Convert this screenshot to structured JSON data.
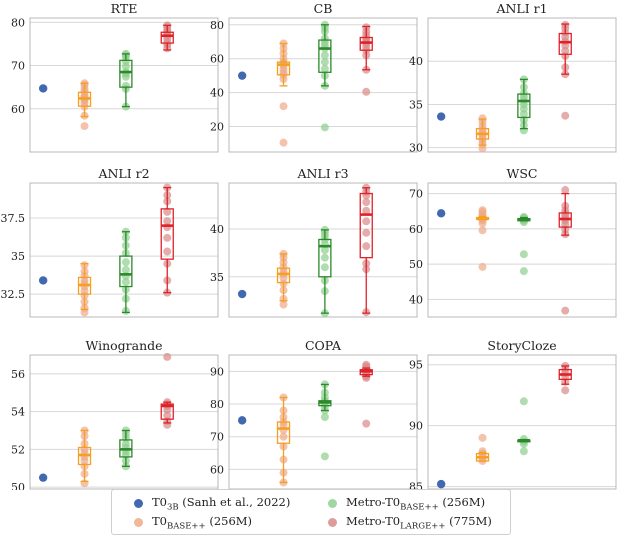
{
  "colors": {
    "T0_3B": "#4169b0",
    "T0_BASE": "#f5a020",
    "Metro_BASE": "#2a8a2a",
    "Metro_LARGE": "#e0202a",
    "T0_BASE_pts": "#eeaa88",
    "Metro_BASE_pts": "#8fcf8f",
    "Metro_LARGE_pts": "#d98a88"
  },
  "legend": [
    {
      "key": "T0_3B",
      "label": "T0",
      "sub": "3B",
      "suffix": " (Sanh et al., 2022)"
    },
    {
      "key": "Metro_BASE",
      "label": "Metro-T0",
      "sub": "BASE++",
      "suffix": " (256M)"
    },
    {
      "key": "T0_BASE",
      "label": "T0",
      "sub": "BASE++",
      "suffix": " (256M)"
    },
    {
      "key": "Metro_LARGE",
      "label": "Metro-T0",
      "sub": "LARGE++",
      "suffix": " (775M)"
    }
  ],
  "chart_data": [
    {
      "type": "box",
      "title": "RTE",
      "ylim": [
        50,
        81
      ],
      "yticks": [
        60,
        70,
        80
      ],
      "t0_3b": 64.7,
      "series": [
        {
          "key": "T0_BASE",
          "box": {
            "min": 58.2,
            "q1": 60.6,
            "median": 62.4,
            "q3": 63.8,
            "max": 65.9,
            "mean": 62.3
          },
          "points": [
            56.0,
            58.4,
            60.5,
            61.3,
            62.0,
            62.2,
            62.5,
            62.8,
            63.2,
            64.0,
            64.6,
            65.5,
            65.9
          ]
        },
        {
          "key": "Metro_BASE",
          "box": {
            "min": 60.5,
            "q1": 65.0,
            "median": 68.5,
            "q3": 71.2,
            "max": 72.7,
            "mean": 68.6
          },
          "points": [
            60.5,
            64.6,
            65.3,
            67.4,
            68.1,
            68.5,
            69.8,
            71.0,
            71.9,
            72.4,
            72.7
          ]
        },
        {
          "key": "Metro_LARGE",
          "box": {
            "min": 73.6,
            "q1": 75.2,
            "median": 76.9,
            "q3": 77.7,
            "max": 79.3,
            "mean": 76.4
          },
          "points": [
            74.0,
            74.8,
            75.3,
            76.2,
            76.9,
            77.4,
            77.8,
            78.3,
            78.9,
            79.3
          ]
        }
      ]
    },
    {
      "type": "box",
      "title": "CB",
      "ylim": [
        5,
        84
      ],
      "yticks": [
        20,
        40,
        60,
        80
      ],
      "t0_3b": 50.0,
      "series": [
        {
          "key": "T0_BASE",
          "box": {
            "min": 44.0,
            "q1": 50.5,
            "median": 56.5,
            "q3": 58.0,
            "max": 69.0,
            "mean": 56.8
          },
          "points": [
            10.5,
            32.0,
            48.0,
            50.5,
            52.0,
            54.0,
            56.0,
            57.0,
            58.0,
            60.0,
            63.0,
            66.0,
            69.0
          ]
        },
        {
          "key": "Metro_BASE",
          "box": {
            "min": 44.0,
            "q1": 52.0,
            "median": 66.0,
            "q3": 71.0,
            "max": 80.0,
            "mean": 66.0
          },
          "points": [
            19.5,
            44.0,
            50.0,
            54.0,
            58.0,
            62.0,
            66.0,
            68.0,
            70.0,
            72.0,
            76.0,
            78.0,
            80.0
          ]
        },
        {
          "key": "Metro_LARGE",
          "box": {
            "min": 53.5,
            "q1": 65.0,
            "median": 69.5,
            "q3": 72.5,
            "max": 79.0,
            "mean": 70.0
          },
          "points": [
            40.5,
            53.5,
            62.0,
            65.0,
            67.0,
            69.0,
            70.0,
            71.0,
            72.0,
            74.0,
            76.0,
            78.5
          ]
        }
      ]
    },
    {
      "type": "box",
      "title": "ANLI r1",
      "ylim": [
        29.5,
        45
      ],
      "yticks": [
        30,
        35,
        40
      ],
      "t0_3b": 33.6,
      "series": [
        {
          "key": "T0_BASE",
          "box": {
            "min": 30.3,
            "q1": 31.0,
            "median": 31.6,
            "q3": 32.2,
            "max": 33.3,
            "mean": 31.7
          },
          "points": [
            29.9,
            30.4,
            30.8,
            31.1,
            31.4,
            31.6,
            31.8,
            32.1,
            32.5,
            33.0,
            33.4
          ]
        },
        {
          "key": "Metro_BASE",
          "box": {
            "min": 32.2,
            "q1": 33.5,
            "median": 35.4,
            "q3": 36.2,
            "max": 37.9,
            "mean": 35.4
          },
          "points": [
            32.0,
            32.6,
            33.2,
            33.9,
            34.5,
            35.0,
            35.5,
            35.9,
            36.3,
            37.0,
            37.9
          ]
        },
        {
          "key": "Metro_LARGE",
          "box": {
            "min": 38.5,
            "q1": 40.8,
            "median": 42.2,
            "q3": 43.2,
            "max": 44.3,
            "mean": 42.0
          },
          "points": [
            33.7,
            38.5,
            39.3,
            40.6,
            41.2,
            41.8,
            42.3,
            42.8,
            43.3,
            43.8,
            44.2
          ]
        }
      ]
    },
    {
      "type": "box",
      "title": "ANLI r2",
      "ylim": [
        31.0,
        39.8
      ],
      "yticks": [
        32.5,
        35.0,
        37.5
      ],
      "t0_3b": 33.4,
      "series": [
        {
          "key": "T0_BASE",
          "box": {
            "min": 31.5,
            "q1": 32.5,
            "median": 33.1,
            "q3": 33.6,
            "max": 34.5,
            "mean": 33.0
          },
          "points": [
            31.3,
            31.6,
            32.0,
            32.4,
            32.7,
            33.0,
            33.2,
            33.4,
            33.7,
            34.0,
            34.4
          ]
        },
        {
          "key": "Metro_BASE",
          "box": {
            "min": 31.3,
            "q1": 33.0,
            "median": 33.8,
            "q3": 35.0,
            "max": 36.6,
            "mean": 33.8
          },
          "points": [
            31.4,
            32.2,
            32.8,
            33.3,
            33.7,
            34.1,
            34.6,
            35.2,
            35.7,
            36.2,
            36.6
          ]
        },
        {
          "key": "Metro_LARGE",
          "box": {
            "min": 32.6,
            "q1": 34.8,
            "median": 37.0,
            "q3": 38.1,
            "max": 39.5,
            "mean": 37.0
          },
          "points": [
            32.6,
            33.4,
            34.5,
            35.3,
            36.2,
            36.9,
            37.3,
            37.9,
            38.6,
            39.0,
            39.5
          ]
        }
      ]
    },
    {
      "type": "box",
      "title": "ANLI r3",
      "ylim": [
        30.8,
        44.8
      ],
      "yticks": [
        35,
        40
      ],
      "t0_3b": 33.2,
      "series": [
        {
          "key": "T0_BASE",
          "box": {
            "min": 32.5,
            "q1": 34.4,
            "median": 35.3,
            "q3": 35.9,
            "max": 37.4,
            "mean": 35.2
          },
          "points": [
            32.1,
            32.7,
            33.6,
            34.3,
            34.9,
            35.3,
            35.6,
            36.0,
            36.5,
            37.0,
            37.4
          ]
        },
        {
          "key": "Metro_BASE",
          "box": {
            "min": 31.2,
            "q1": 35.0,
            "median": 38.2,
            "q3": 38.9,
            "max": 39.9,
            "mean": 38.3
          },
          "points": [
            31.2,
            33.5,
            34.6,
            36.0,
            37.0,
            37.8,
            38.4,
            38.9,
            39.3,
            39.6,
            39.9
          ]
        },
        {
          "key": "Metro_LARGE",
          "box": {
            "min": 31.2,
            "q1": 37.0,
            "median": 41.5,
            "q3": 43.7,
            "max": 44.3,
            "mean": 41.5
          },
          "points": [
            31.3,
            35.8,
            36.4,
            38.2,
            39.6,
            40.8,
            41.9,
            42.8,
            43.5,
            43.9,
            44.3
          ]
        }
      ]
    },
    {
      "type": "box",
      "title": "WSC",
      "ylim": [
        35,
        73
      ],
      "yticks": [
        40,
        50,
        60,
        70
      ],
      "t0_3b": 64.4,
      "series": [
        {
          "key": "T0_BASE",
          "box": {
            "min": 62.8,
            "q1": 62.8,
            "median": 62.8,
            "q3": 63.2,
            "max": 63.5,
            "mean": 62.9
          },
          "points": [
            49.2,
            59.6,
            61.6,
            62.4,
            62.8,
            63.1,
            63.5,
            64.1,
            64.8,
            65.3
          ]
        },
        {
          "key": "Metro_BASE",
          "box": {
            "min": 62.3,
            "q1": 62.3,
            "median": 62.7,
            "q3": 62.9,
            "max": 63.2,
            "mean": 62.6
          },
          "points": [
            48.0,
            52.8,
            61.9,
            62.3,
            62.6,
            62.9,
            63.1,
            63.4
          ]
        },
        {
          "key": "Metro_LARGE",
          "box": {
            "min": 58.2,
            "q1": 60.5,
            "median": 62.8,
            "q3": 64.5,
            "max": 70.0,
            "mean": 63.0
          },
          "points": [
            36.8,
            58.5,
            59.8,
            61.2,
            62.3,
            63.0,
            63.7,
            64.4,
            65.2,
            66.5,
            71.0
          ]
        }
      ]
    },
    {
      "type": "box",
      "title": "Winogrande",
      "ylim": [
        49.9,
        57.0
      ],
      "yticks": [
        50,
        52,
        54,
        56
      ],
      "t0_3b": 50.5,
      "series": [
        {
          "key": "T0_BASE",
          "box": {
            "min": 50.3,
            "q1": 51.2,
            "median": 51.7,
            "q3": 52.1,
            "max": 53.0,
            "mean": 51.7
          },
          "points": [
            50.2,
            50.7,
            51.1,
            51.4,
            51.6,
            51.8,
            52.0,
            52.3,
            52.7,
            53.0
          ]
        },
        {
          "key": "Metro_BASE",
          "box": {
            "min": 51.1,
            "q1": 51.6,
            "median": 52.0,
            "q3": 52.5,
            "max": 53.0,
            "mean": 52.0
          },
          "points": [
            51.1,
            51.4,
            51.7,
            51.9,
            52.1,
            52.3,
            52.6,
            52.8,
            53.0
          ]
        },
        {
          "key": "Metro_LARGE",
          "box": {
            "min": 53.4,
            "q1": 53.6,
            "median": 54.3,
            "q3": 54.4,
            "max": 54.5,
            "mean": 54.2
          },
          "points": [
            53.3,
            53.5,
            53.8,
            54.1,
            54.3,
            54.4,
            54.5,
            56.9
          ]
        }
      ]
    },
    {
      "type": "box",
      "title": "COPA",
      "ylim": [
        54,
        95
      ],
      "yticks": [
        60,
        70,
        80,
        90
      ],
      "t0_3b": 75.0,
      "series": [
        {
          "key": "T0_BASE",
          "box": {
            "min": 56.0,
            "q1": 68.0,
            "median": 72.5,
            "q3": 74.5,
            "max": 82.0,
            "mean": 72.0
          },
          "points": [
            56.0,
            59.0,
            63.0,
            67.0,
            70.0,
            72.0,
            73.5,
            74.5,
            76.0,
            78.0,
            82.0
          ]
        },
        {
          "key": "Metro_BASE",
          "box": {
            "min": 78.0,
            "q1": 79.5,
            "median": 80.5,
            "q3": 81.0,
            "max": 86.0,
            "mean": 80.5
          },
          "points": [
            64.0,
            76.0,
            78.0,
            79.0,
            80.0,
            80.5,
            81.0,
            82.0,
            83.5,
            86.0
          ]
        },
        {
          "key": "Metro_LARGE",
          "box": {
            "min": 88.5,
            "q1": 89.0,
            "median": 90.0,
            "q3": 90.5,
            "max": 91.0,
            "mean": 89.8
          },
          "points": [
            74.0,
            88.0,
            88.5,
            89.0,
            89.5,
            90.0,
            90.5,
            91.0,
            91.5,
            92.0
          ]
        }
      ]
    },
    {
      "type": "box",
      "title": "StoryCloze",
      "ylim": [
        84.8,
        95.8
      ],
      "yticks": [
        85,
        90,
        95
      ],
      "t0_3b": 85.2,
      "series": [
        {
          "key": "T0_BASE",
          "box": {
            "min": 87.1,
            "q1": 87.1,
            "median": 87.4,
            "q3": 87.7,
            "max": 87.8,
            "mean": 87.4
          },
          "points": [
            87.1,
            87.3,
            87.5,
            87.7,
            87.9,
            89.0
          ]
        },
        {
          "key": "Metro_BASE",
          "box": {
            "min": 88.7,
            "q1": 88.7,
            "median": 88.8,
            "q3": 88.8,
            "max": 88.8,
            "mean": 88.8
          },
          "points": [
            87.9,
            88.5,
            88.7,
            88.9,
            92.0
          ]
        },
        {
          "key": "Metro_LARGE",
          "box": {
            "min": 93.4,
            "q1": 93.8,
            "median": 94.2,
            "q3": 94.6,
            "max": 94.9,
            "mean": 94.1
          },
          "points": [
            92.9,
            93.6,
            94.0,
            94.3,
            94.6,
            94.9
          ]
        }
      ]
    }
  ]
}
